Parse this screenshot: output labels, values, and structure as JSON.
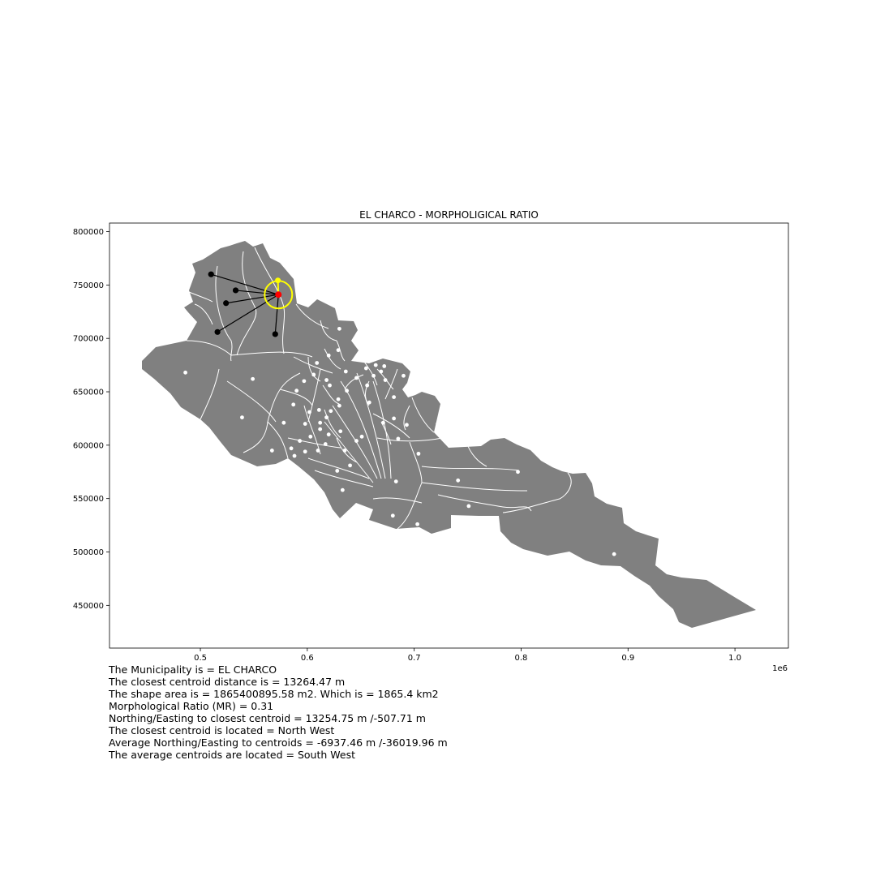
{
  "map": {
    "title": "EL CHARCO - MORPHOLIGICAL RATIO",
    "x_ticks": [
      "0.5",
      "0.6",
      "0.7",
      "0.8",
      "0.9",
      "1.0"
    ],
    "x_tick_values": [
      500000,
      600000,
      700000,
      800000,
      900000,
      1000000
    ],
    "x_offset_label": "1e6",
    "y_ticks": [
      "800000",
      "750000",
      "700000",
      "650000",
      "600000",
      "550000",
      "500000",
      "450000"
    ],
    "y_tick_values": [
      800000,
      750000,
      700000,
      650000,
      600000,
      550000,
      500000,
      450000
    ],
    "xlim": [
      415000,
      1050000
    ],
    "ylim": [
      410000,
      808000
    ],
    "colors": {
      "region_fill": "#808080",
      "boundary": "#ffffff",
      "target_centroid": "#ff0000",
      "closest_centroid": "#ffff00",
      "neighbor_centroid": "#000000",
      "other_centroid": "#ffffff",
      "buffer_circle": "#ffff00"
    },
    "target_centroid": [
      573000,
      741000
    ],
    "closest_centroid": [
      572500,
      754300
    ],
    "neighbor_centroids": [
      [
        510000,
        760000
      ],
      [
        533000,
        745000
      ],
      [
        524000,
        733000
      ],
      [
        516000,
        706000
      ],
      [
        570000,
        704000
      ]
    ],
    "other_centroids": [
      [
        486000,
        668000
      ],
      [
        549000,
        662000
      ],
      [
        539000,
        626000
      ],
      [
        578000,
        621000
      ],
      [
        567000,
        595000
      ],
      [
        630000,
        709000
      ],
      [
        629000,
        689000
      ],
      [
        620000,
        684000
      ],
      [
        609000,
        677000
      ],
      [
        606000,
        666000
      ],
      [
        597000,
        660000
      ],
      [
        590000,
        651000
      ],
      [
        587000,
        638000
      ],
      [
        602000,
        631000
      ],
      [
        611000,
        633000
      ],
      [
        598000,
        620000
      ],
      [
        612000,
        621000
      ],
      [
        620000,
        610000
      ],
      [
        631000,
        613000
      ],
      [
        635000,
        595000
      ],
      [
        640000,
        581000
      ],
      [
        628000,
        576000
      ],
      [
        633000,
        558000
      ],
      [
        617000,
        601000
      ],
      [
        610000,
        595000
      ],
      [
        598000,
        594000
      ],
      [
        588000,
        590000
      ],
      [
        603000,
        608000
      ],
      [
        593000,
        604000
      ],
      [
        585000,
        597000
      ],
      [
        618000,
        626000
      ],
      [
        622000,
        632000
      ],
      [
        630000,
        637000
      ],
      [
        637000,
        651000
      ],
      [
        629000,
        643000
      ],
      [
        621000,
        656000
      ],
      [
        618000,
        661000
      ],
      [
        636000,
        669000
      ],
      [
        646000,
        663000
      ],
      [
        655000,
        672000
      ],
      [
        664000,
        675000
      ],
      [
        672000,
        674000
      ],
      [
        669000,
        669000
      ],
      [
        662000,
        665000
      ],
      [
        656000,
        656000
      ],
      [
        673000,
        661000
      ],
      [
        690000,
        665000
      ],
      [
        681000,
        645000
      ],
      [
        658000,
        640000
      ],
      [
        671000,
        621000
      ],
      [
        681000,
        625000
      ],
      [
        693000,
        619000
      ],
      [
        685000,
        606000
      ],
      [
        704000,
        592000
      ],
      [
        651000,
        608000
      ],
      [
        683000,
        566000
      ],
      [
        680000,
        534000
      ],
      [
        703000,
        526000
      ],
      [
        741000,
        567000
      ],
      [
        751000,
        543000
      ],
      [
        722000,
        620000
      ],
      [
        797000,
        575000
      ],
      [
        887000,
        498000
      ],
      [
        612000,
        615000
      ],
      [
        646000,
        604000
      ]
    ]
  },
  "info": {
    "lines": [
      "The Municipality is = EL CHARCO",
      "The closest centroid distance is = 13264.47 m",
      "The shape area is = 1865400895.58 m2. Which is = 1865.4 km2",
      "Morphological Ratio (MR) = 0.31",
      "Northing/Easting to closest centroid = 13254.75 m /-507.71 m",
      "The closest centroid is located = North West",
      "Average Northing/Easting to centroids = -6937.46 m /-36019.96 m",
      "The average centroids are located = South West"
    ]
  }
}
